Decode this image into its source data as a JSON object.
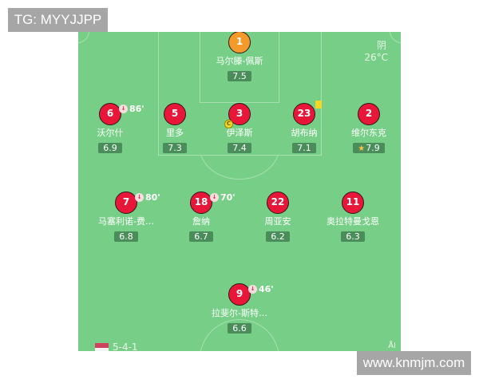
{
  "watermarks": {
    "top_left": "TG: MYYJJPP",
    "bottom_right": "www.knmjm.com"
  },
  "weather": {
    "condition": "阴",
    "temperature": "26°C"
  },
  "formation": "5-4-1",
  "colors": {
    "pitch": "#77cf87",
    "player": "#e8173a",
    "goalkeeper": "#f39a2b",
    "rating_bg": "#4a8d5b",
    "yellow_card": "#f6d823"
  },
  "players": [
    {
      "number": "1",
      "name": "马尔滕-佩斯",
      "rating": "7.5",
      "goalkeeper": true
    },
    {
      "number": "6",
      "name": "沃尔什",
      "rating": "6.9",
      "sub_minute": "86'"
    },
    {
      "number": "5",
      "name": "里多",
      "rating": "7.3"
    },
    {
      "number": "3",
      "name": "伊泽斯",
      "rating": "7.4",
      "captain": "C"
    },
    {
      "number": "23",
      "name": "胡布纳",
      "rating": "7.1",
      "yellow_card": true
    },
    {
      "number": "2",
      "name": "维尔东克",
      "rating": "7.9",
      "star": true
    },
    {
      "number": "7",
      "name": "马塞利诺-费…",
      "rating": "6.8",
      "sub_minute": "80'"
    },
    {
      "number": "18",
      "name": "詹纳",
      "rating": "6.7",
      "sub_minute": "70'"
    },
    {
      "number": "22",
      "name": "周亚安",
      "rating": "6.2"
    },
    {
      "number": "11",
      "name": "奥拉特曼戈恩",
      "rating": "6.3"
    },
    {
      "number": "9",
      "name": "拉斐尔-斯特…",
      "rating": "6.6",
      "sub_minute": "46'"
    }
  ]
}
